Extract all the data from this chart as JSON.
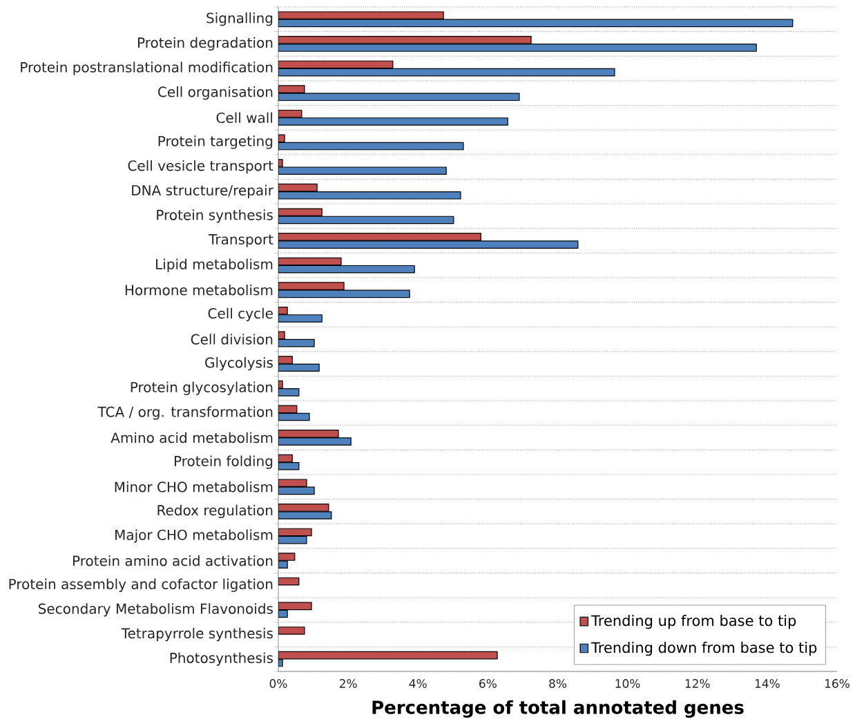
{
  "chart_data": {
    "type": "bar",
    "orientation": "horizontal",
    "xlabel": "Percentage of total annotated genes",
    "categories": [
      "Signalling",
      "Protein degradation",
      "Protein postranslational modification",
      "Cell organisation",
      "Cell wall",
      "Protein targeting",
      "Cell vesicle transport",
      "DNA structure/repair",
      "Protein synthesis",
      "Transport",
      "Lipid metabolism",
      "Hormone metabolism",
      "Cell cycle",
      "Cell division",
      "Glycolysis",
      "Protein glycosylation",
      "TCA / org. transformation",
      "Amino acid metabolism",
      "Protein folding",
      "Minor CHO metabolism",
      "Redox regulation",
      "Major CHO metabolism",
      "Protein amino acid activation",
      "Protein assembly and cofactor ligation",
      "Secondary Metabolism Flavonoids",
      "Tetrapyrrole synthesis",
      "Photosynthesis"
    ],
    "series": [
      {
        "name": "Trending up from base to tip",
        "color": "#c0504d",
        "values": [
          4.73,
          7.24,
          3.28,
          0.75,
          0.67,
          0.18,
          0.12,
          1.11,
          1.25,
          5.8,
          1.8,
          1.88,
          0.26,
          0.18,
          0.4,
          0.12,
          0.53,
          1.72,
          0.4,
          0.81,
          1.44,
          0.95,
          0.47,
          0.59,
          0.95,
          0.75,
          6.27
        ]
      },
      {
        "name": "Trending down from base to tip",
        "color": "#4f81bd",
        "values": [
          14.73,
          13.69,
          9.63,
          6.9,
          6.57,
          5.3,
          4.81,
          5.22,
          5.02,
          8.58,
          3.9,
          3.76,
          1.25,
          1.03,
          1.17,
          0.59,
          0.89,
          2.08,
          0.59,
          1.03,
          1.52,
          0.81,
          0.26,
          null,
          0.26,
          null,
          0.12
        ]
      }
    ],
    "xlim": [
      0,
      16
    ],
    "xticks": [
      {
        "value": 0,
        "label": "0%"
      },
      {
        "value": 2,
        "label": "2%"
      },
      {
        "value": 4,
        "label": "4%"
      },
      {
        "value": 6,
        "label": "6%"
      },
      {
        "value": 8,
        "label": "8%"
      },
      {
        "value": 10,
        "label": "10%"
      },
      {
        "value": 12,
        "label": "12%"
      },
      {
        "value": 14,
        "label": "14%"
      },
      {
        "value": 16,
        "label": "16%"
      }
    ],
    "grid": "y",
    "legend": "bottom right"
  }
}
